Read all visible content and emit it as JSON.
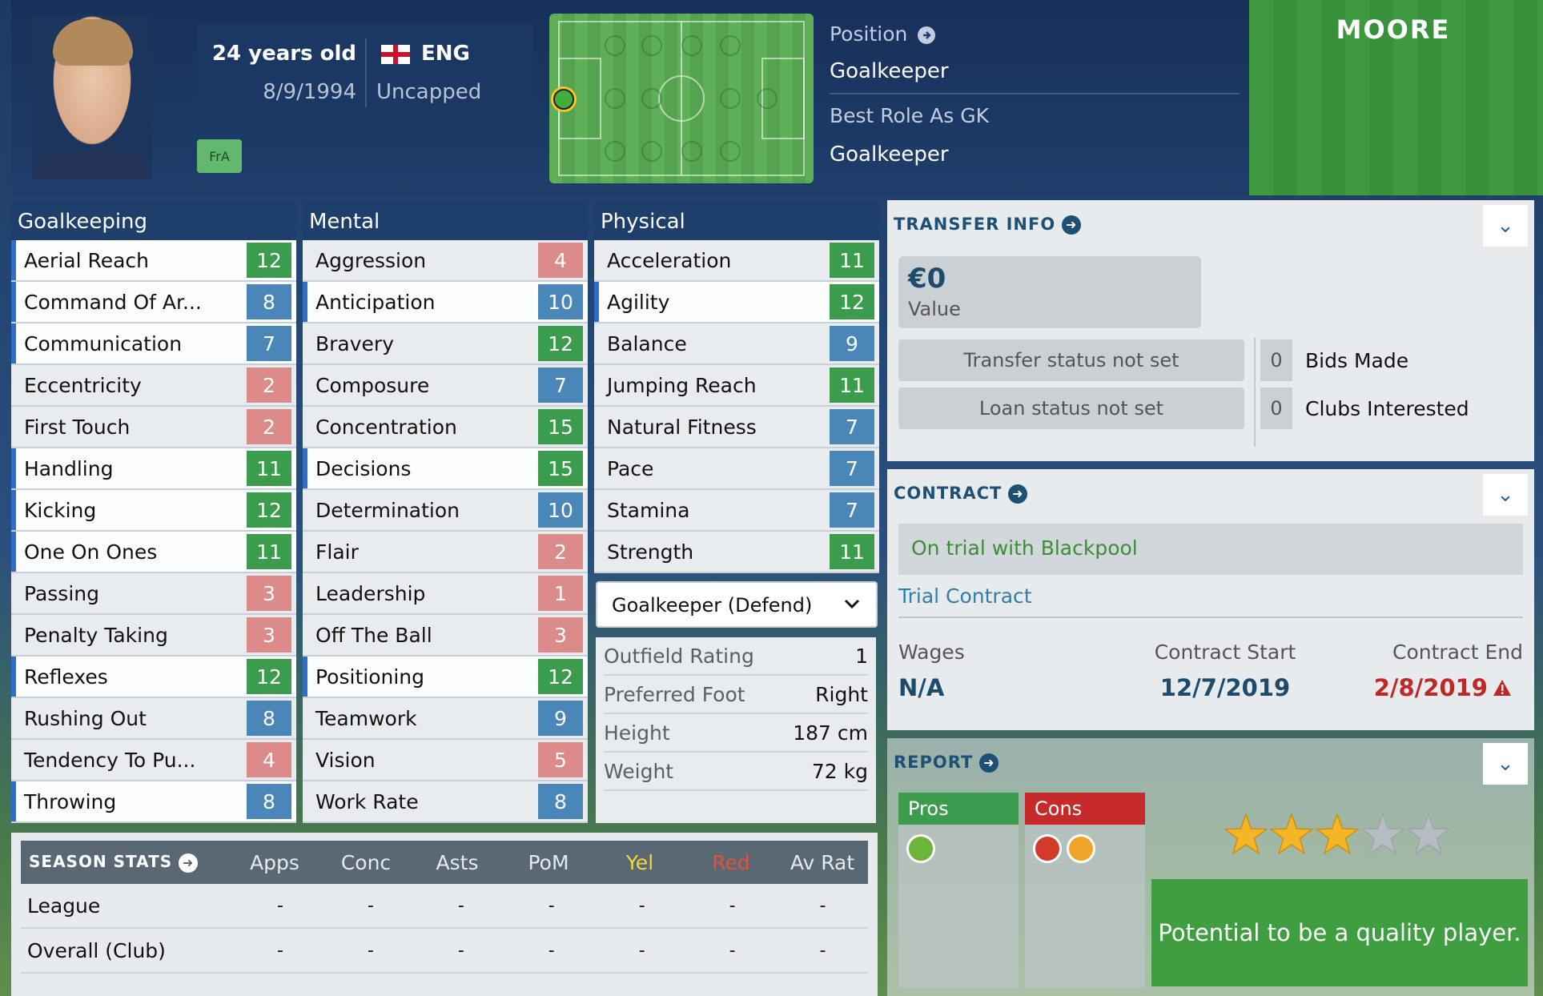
{
  "player": {
    "name": "MOORE",
    "age": "24 years old",
    "dob": "8/9/1994",
    "nation": "ENG",
    "caps": "Uncapped",
    "badge": "FrA"
  },
  "position": {
    "title": "Position",
    "value": "Goalkeeper",
    "role_title": "Best Role As GK",
    "role_value": "Goalkeeper"
  },
  "goalkeeping": {
    "title": "Goalkeeping",
    "items": [
      {
        "label": "Aerial Reach",
        "value": "12",
        "color": "green",
        "hl": true
      },
      {
        "label": "Command Of Ar...",
        "value": "8",
        "color": "blue",
        "hl": true
      },
      {
        "label": "Communication",
        "value": "7",
        "color": "blue",
        "hl": true
      },
      {
        "label": "Eccentricity",
        "value": "2",
        "color": "red",
        "hl": false
      },
      {
        "label": "First Touch",
        "value": "2",
        "color": "red",
        "hl": false
      },
      {
        "label": "Handling",
        "value": "11",
        "color": "green",
        "hl": true
      },
      {
        "label": "Kicking",
        "value": "12",
        "color": "green",
        "hl": true
      },
      {
        "label": "One On Ones",
        "value": "11",
        "color": "green",
        "hl": true
      },
      {
        "label": "Passing",
        "value": "3",
        "color": "red",
        "hl": false
      },
      {
        "label": "Penalty Taking",
        "value": "3",
        "color": "red",
        "hl": false
      },
      {
        "label": "Reflexes",
        "value": "12",
        "color": "green",
        "hl": true
      },
      {
        "label": "Rushing Out",
        "value": "8",
        "color": "blue",
        "hl": false
      },
      {
        "label": "Tendency To Pu...",
        "value": "4",
        "color": "red",
        "hl": false
      },
      {
        "label": "Throwing",
        "value": "8",
        "color": "blue",
        "hl": true
      }
    ]
  },
  "mental": {
    "title": "Mental",
    "items": [
      {
        "label": "Aggression",
        "value": "4",
        "color": "red",
        "hl": false
      },
      {
        "label": "Anticipation",
        "value": "10",
        "color": "blue",
        "hl": true
      },
      {
        "label": "Bravery",
        "value": "12",
        "color": "green",
        "hl": false
      },
      {
        "label": "Composure",
        "value": "7",
        "color": "blue",
        "hl": false
      },
      {
        "label": "Concentration",
        "value": "15",
        "color": "green",
        "hl": false
      },
      {
        "label": "Decisions",
        "value": "15",
        "color": "green",
        "hl": true
      },
      {
        "label": "Determination",
        "value": "10",
        "color": "blue",
        "hl": false
      },
      {
        "label": "Flair",
        "value": "2",
        "color": "red",
        "hl": false
      },
      {
        "label": "Leadership",
        "value": "1",
        "color": "red",
        "hl": false
      },
      {
        "label": "Off The Ball",
        "value": "3",
        "color": "red",
        "hl": false
      },
      {
        "label": "Positioning",
        "value": "12",
        "color": "green",
        "hl": true
      },
      {
        "label": "Teamwork",
        "value": "9",
        "color": "blue",
        "hl": false
      },
      {
        "label": "Vision",
        "value": "5",
        "color": "red",
        "hl": false
      },
      {
        "label": "Work Rate",
        "value": "8",
        "color": "blue",
        "hl": false
      }
    ]
  },
  "physical": {
    "title": "Physical",
    "items": [
      {
        "label": "Acceleration",
        "value": "11",
        "color": "green",
        "hl": false
      },
      {
        "label": "Agility",
        "value": "12",
        "color": "green",
        "hl": true
      },
      {
        "label": "Balance",
        "value": "9",
        "color": "blue",
        "hl": false
      },
      {
        "label": "Jumping Reach",
        "value": "11",
        "color": "green",
        "hl": false
      },
      {
        "label": "Natural Fitness",
        "value": "7",
        "color": "blue",
        "hl": false
      },
      {
        "label": "Pace",
        "value": "7",
        "color": "blue",
        "hl": false
      },
      {
        "label": "Stamina",
        "value": "7",
        "color": "blue",
        "hl": false
      },
      {
        "label": "Strength",
        "value": "11",
        "color": "green",
        "hl": false
      }
    ]
  },
  "role_select": "Goalkeeper (Defend)",
  "details": [
    {
      "k": "Outfield Rating",
      "v": "1"
    },
    {
      "k": "Preferred Foot",
      "v": "Right"
    },
    {
      "k": "Height",
      "v": "187 cm"
    },
    {
      "k": "Weight",
      "v": "72 kg"
    }
  ],
  "transfer": {
    "title": "TRANSFER INFO",
    "value": "€0",
    "value_label": "Value",
    "transfer_status": "Transfer status not set",
    "loan_status": "Loan status not set",
    "bids": "0",
    "bids_label": "Bids Made",
    "clubs": "0",
    "clubs_label": "Clubs Interested"
  },
  "contract": {
    "title": "CONTRACT",
    "trial": "On trial with Blackpool",
    "type": "Trial Contract",
    "wages_label": "Wages",
    "wages": "N/A",
    "start_label": "Contract Start",
    "start": "12/7/2019",
    "end_label": "Contract End",
    "end": "2/8/2019"
  },
  "report": {
    "title": "REPORT",
    "pros": "Pros",
    "cons": "Cons",
    "stars": 3,
    "stars_max": 5,
    "potential": "Potential to be a quality player."
  },
  "season": {
    "title": "SEASON STATS",
    "columns": [
      "Apps",
      "Conc",
      "Asts",
      "PoM",
      "Yel",
      "Red",
      "Av Rat"
    ],
    "rows": [
      {
        "label": "League",
        "values": [
          "-",
          "-",
          "-",
          "-",
          "-",
          "-",
          "-"
        ]
      },
      {
        "label": "Overall (Club)",
        "values": [
          "-",
          "-",
          "-",
          "-",
          "-",
          "-",
          "-"
        ]
      }
    ]
  },
  "colors": {
    "green": "#3a9c4c",
    "blue": "#4a87b8",
    "red": "#dc8a8a",
    "yellow_col": "#f1d93a",
    "red_col": "#e0523a",
    "end_date": "#c02828"
  }
}
